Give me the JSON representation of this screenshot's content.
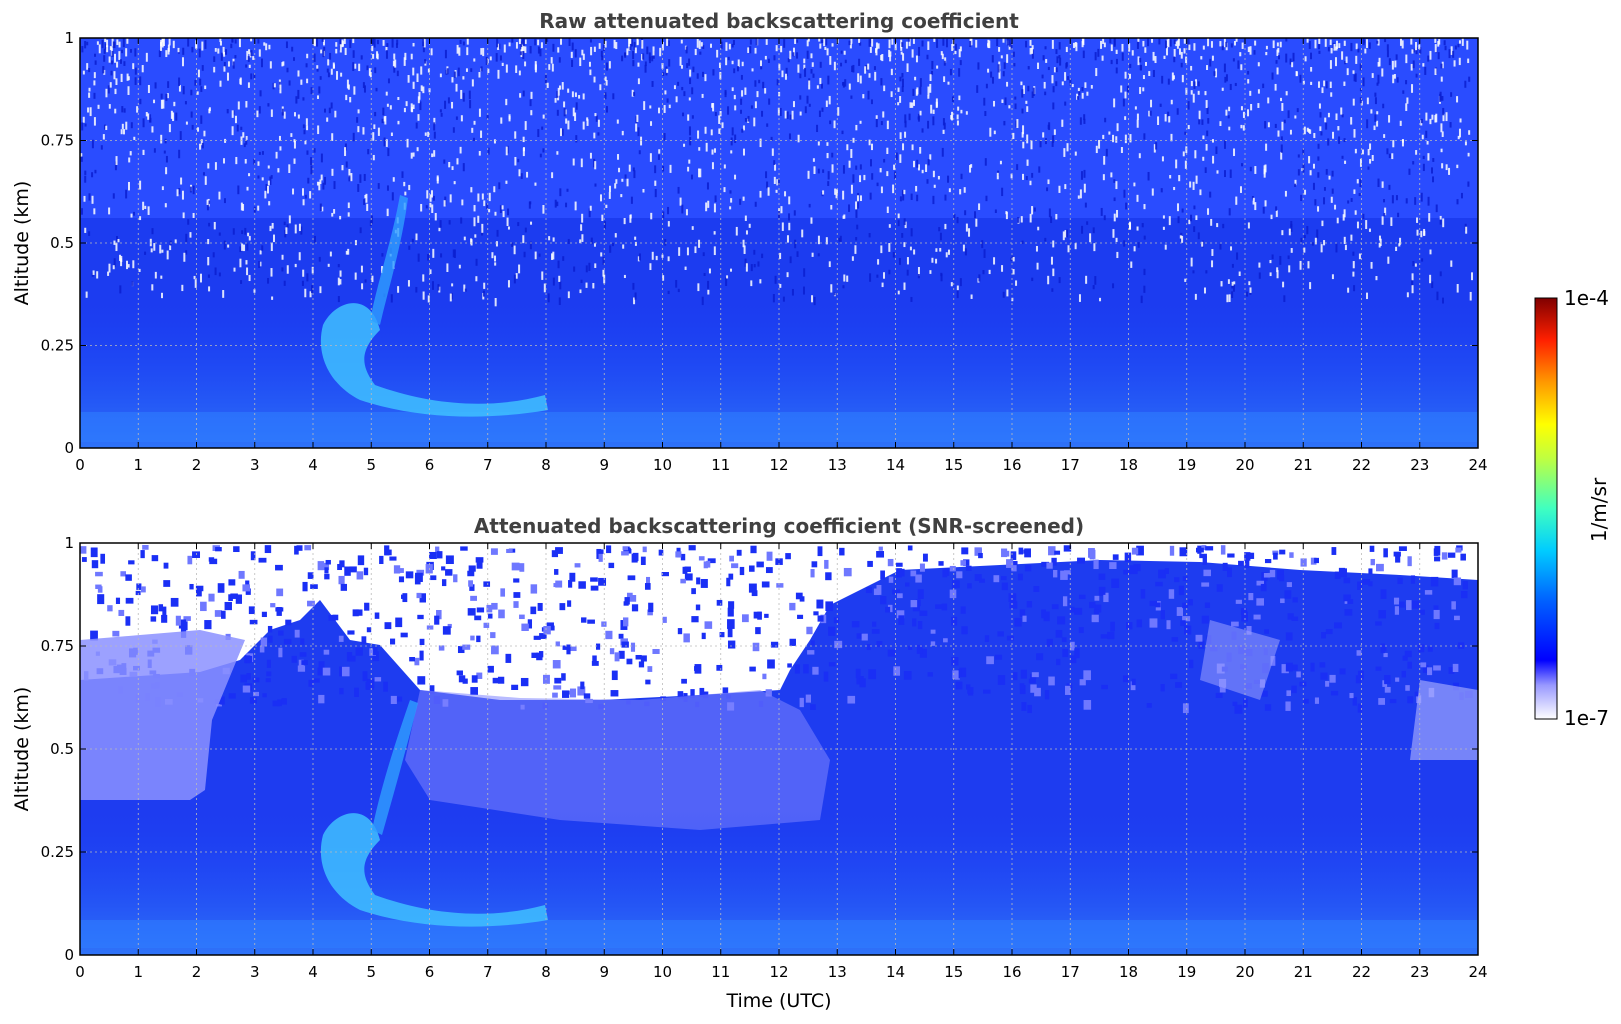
{
  "chart_data": [
    {
      "type": "heatmap",
      "title": "Raw attenuated backscattering coefficient",
      "xlabel": "",
      "ylabel": "Altitude (km)",
      "xlim": [
        0,
        24
      ],
      "ylim": [
        0,
        1
      ],
      "x_ticks": [
        "0",
        "1",
        "2",
        "3",
        "4",
        "5",
        "6",
        "7",
        "8",
        "9",
        "10",
        "11",
        "12",
        "13",
        "14",
        "15",
        "16",
        "17",
        "18",
        "19",
        "20",
        "21",
        "22",
        "23",
        "24"
      ],
      "y_ticks": [
        "0",
        "0.25",
        "0.5",
        "0.75",
        "1"
      ],
      "grid": true,
      "colorscale": "jet",
      "color_range": [
        "1e-7",
        "1e-4"
      ],
      "features": [
        {
          "feature": "aerosol layer",
          "time_utc": [
            0,
            24
          ],
          "altitude_km": [
            0,
            0.4
          ]
        },
        {
          "feature": "plume",
          "time_utc": [
            4.2,
            8.5
          ],
          "altitude_km": [
            0.1,
            0.3
          ]
        },
        {
          "feature": "rising plume",
          "time_utc": [
            5.0,
            5.8
          ],
          "altitude_km": [
            0.25,
            0.6
          ]
        }
      ]
    },
    {
      "type": "heatmap",
      "title": "Attenuated backscattering coefficient (SNR-screened)",
      "xlabel": "Time (UTC)",
      "ylabel": "Altitude (km)",
      "xlim": [
        0,
        24
      ],
      "ylim": [
        0,
        1
      ],
      "x_ticks": [
        "0",
        "1",
        "2",
        "3",
        "4",
        "5",
        "6",
        "7",
        "8",
        "9",
        "10",
        "11",
        "12",
        "13",
        "14",
        "15",
        "16",
        "17",
        "18",
        "19",
        "20",
        "21",
        "22",
        "23",
        "24"
      ],
      "y_ticks": [
        "0",
        "0.25",
        "0.5",
        "0.75",
        "1"
      ],
      "grid": true,
      "colorscale": "jet",
      "color_range": [
        "1e-7",
        "1e-4"
      ]
    }
  ],
  "colorbar": {
    "max_label": "1e-4",
    "min_label": "1e-7",
    "unit_label": "1/m/sr",
    "colors": [
      "#ffffff",
      "#0000ff",
      "#0080ff",
      "#00ffff",
      "#80ff80",
      "#ffff00",
      "#ff8000",
      "#ff0000",
      "#800000"
    ]
  }
}
